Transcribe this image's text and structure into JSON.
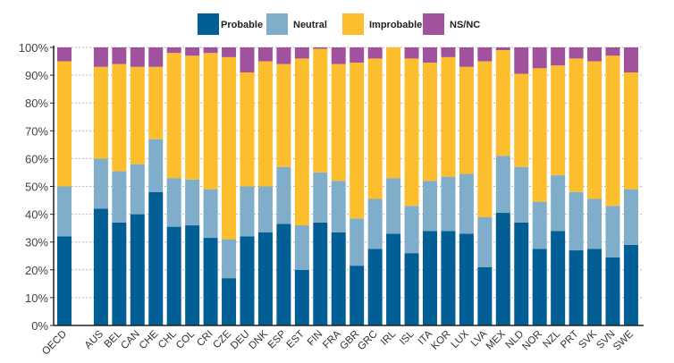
{
  "chart_data": {
    "type": "bar",
    "stacked": true,
    "title": "",
    "xlabel": "",
    "ylabel": "",
    "ylim": [
      0,
      100
    ],
    "yticks": [
      "0%",
      "10%",
      "20%",
      "30%",
      "40%",
      "50%",
      "60%",
      "70%",
      "80%",
      "90%",
      "100%"
    ],
    "grid": "horizontal dotted",
    "legend_position": "top",
    "categories": [
      "OECD",
      "AUS",
      "BEL",
      "CAN",
      "CHE",
      "CHL",
      "COL",
      "CRI",
      "CZE",
      "DEU",
      "DNK",
      "ESP",
      "EST",
      "FIN",
      "FRA",
      "GBR",
      "GRC",
      "IRL",
      "ISL",
      "ITA",
      "KOR",
      "LUX",
      "LVA",
      "MEX",
      "NLD",
      "NOR",
      "NZL",
      "PRT",
      "SVK",
      "SVN",
      "SWE"
    ],
    "series": [
      {
        "name": "Probable",
        "color": "#025f95",
        "values": [
          32,
          42,
          37,
          40,
          48,
          35.5,
          36,
          31.5,
          17,
          32,
          33.5,
          36.5,
          20,
          37,
          33.5,
          21.5,
          27.5,
          33,
          26,
          34,
          34,
          33,
          21,
          40.5,
          37,
          27.5,
          34,
          27,
          27.5,
          24.5,
          29
        ]
      },
      {
        "name": "Neutral",
        "color": "#7fadca",
        "values": [
          18,
          18,
          18.5,
          18,
          19,
          17.5,
          16.5,
          17.5,
          14,
          18,
          16.5,
          20.5,
          16,
          18,
          18.5,
          17,
          18,
          20,
          17,
          18,
          19.5,
          21.5,
          18,
          20.5,
          20,
          17,
          20,
          21,
          18,
          18.5,
          20
        ]
      },
      {
        "name": "Improbable",
        "color": "#fdbe2e",
        "values": [
          45,
          33,
          38.5,
          35,
          26,
          45,
          44.5,
          49,
          65.5,
          41,
          45,
          37,
          60,
          44.5,
          42,
          56,
          50.5,
          47,
          53,
          42.5,
          43,
          38.5,
          56,
          38,
          33.5,
          48,
          39.5,
          48,
          49.5,
          54,
          42
        ]
      },
      {
        "name": "NS/NC",
        "color": "#a0529c",
        "values": [
          5,
          7,
          6,
          7,
          7,
          2,
          3,
          2,
          3.5,
          9,
          5,
          6,
          4,
          0.5,
          6,
          5.5,
          4,
          0,
          4,
          5.5,
          3.5,
          7,
          5,
          1,
          9.5,
          7.5,
          6.5,
          4,
          5,
          3,
          9
        ]
      }
    ]
  }
}
